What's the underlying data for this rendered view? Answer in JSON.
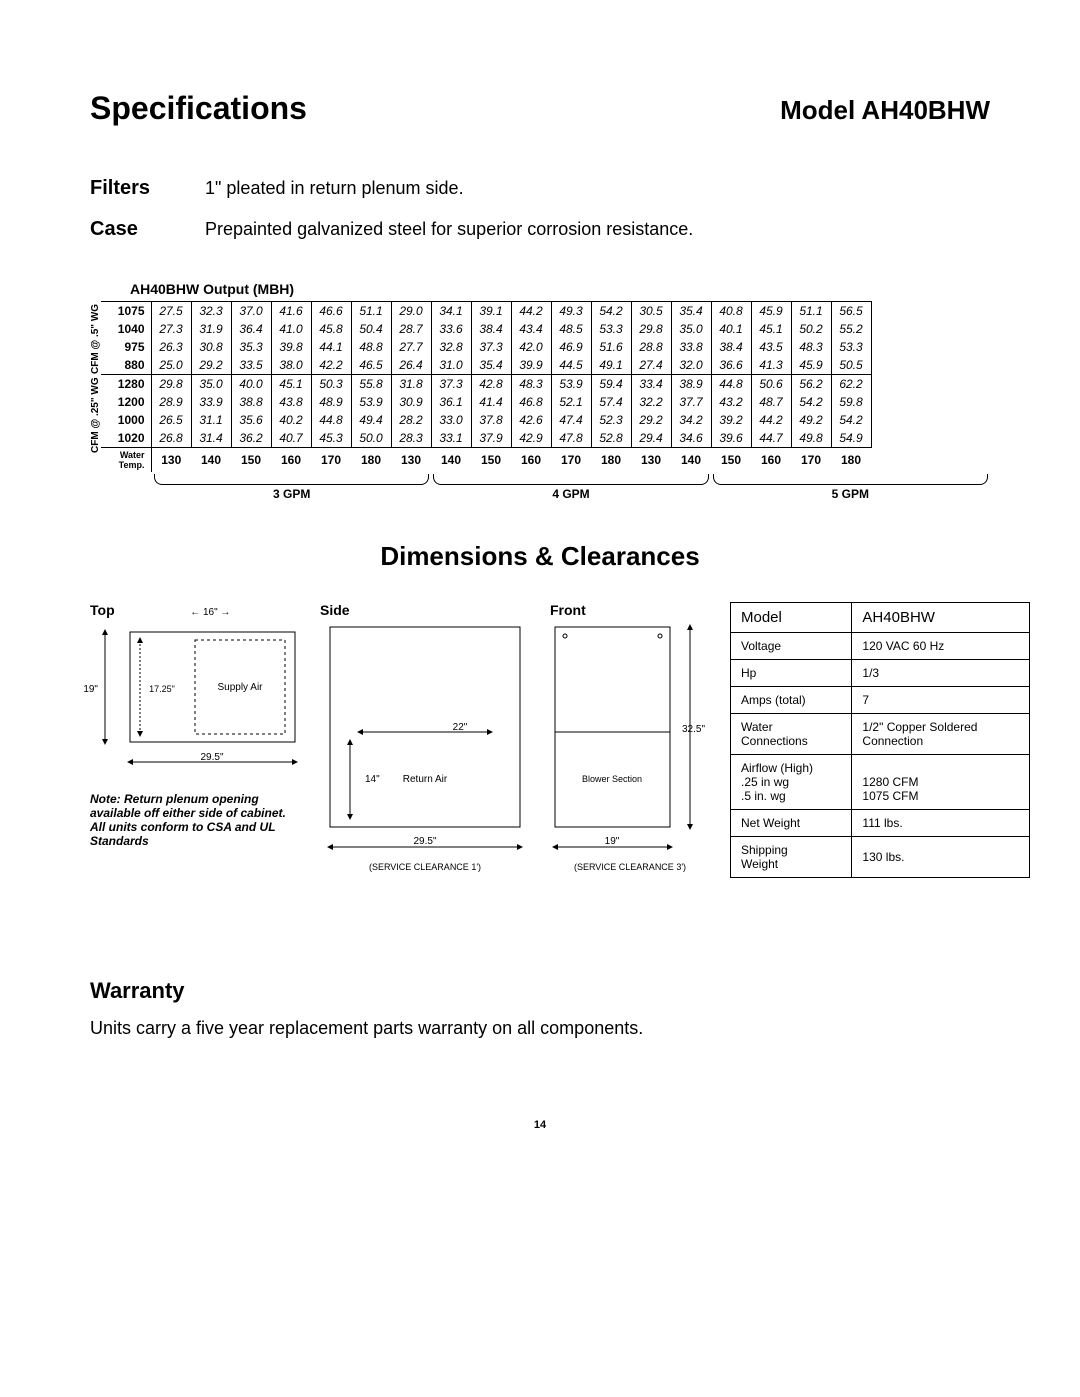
{
  "header": {
    "title": "Specifications",
    "model": "Model  AH40BHW"
  },
  "specs": {
    "filters_label": "Filters",
    "filters_text": "1\" pleated in return plenum side.",
    "case_label": "Case",
    "case_text": "Prepainted galvanized steel for superior corrosion resistance."
  },
  "output_table": {
    "title": "AH40BHW Output (MBH)",
    "vlabel1": "CFM @ .5\" WG",
    "vlabel2": "CFM @ .25\" WG",
    "rows": [
      {
        "head": "1075",
        "cells": [
          "27.5",
          "32.3",
          "37.0",
          "41.6",
          "46.6",
          "51.1",
          "29.0",
          "34.1",
          "39.1",
          "44.2",
          "49.3",
          "54.2",
          "30.5",
          "35.4",
          "40.8",
          "45.9",
          "51.1",
          "56.5"
        ]
      },
      {
        "head": "1040",
        "cells": [
          "27.3",
          "31.9",
          "36.4",
          "41.0",
          "45.8",
          "50.4",
          "28.7",
          "33.6",
          "38.4",
          "43.4",
          "48.5",
          "53.3",
          "29.8",
          "35.0",
          "40.1",
          "45.1",
          "50.2",
          "55.2"
        ]
      },
      {
        "head": "975",
        "cells": [
          "26.3",
          "30.8",
          "35.3",
          "39.8",
          "44.1",
          "48.8",
          "27.7",
          "32.8",
          "37.3",
          "42.0",
          "46.9",
          "51.6",
          "28.8",
          "33.8",
          "38.4",
          "43.5",
          "48.3",
          "53.3"
        ]
      },
      {
        "head": "880",
        "cells": [
          "25.0",
          "29.2",
          "33.5",
          "38.0",
          "42.2",
          "46.5",
          "26.4",
          "31.0",
          "35.4",
          "39.9",
          "44.5",
          "49.1",
          "27.4",
          "32.0",
          "36.6",
          "41.3",
          "45.9",
          "50.5"
        ]
      },
      {
        "head": "1280",
        "cells": [
          "29.8",
          "35.0",
          "40.0",
          "45.1",
          "50.3",
          "55.8",
          "31.8",
          "37.3",
          "42.8",
          "48.3",
          "53.9",
          "59.4",
          "33.4",
          "38.9",
          "44.8",
          "50.6",
          "56.2",
          "62.2"
        ]
      },
      {
        "head": "1200",
        "cells": [
          "28.9",
          "33.9",
          "38.8",
          "43.8",
          "48.9",
          "53.9",
          "30.9",
          "36.1",
          "41.4",
          "46.8",
          "52.1",
          "57.4",
          "32.2",
          "37.7",
          "43.2",
          "48.7",
          "54.2",
          "59.8"
        ]
      },
      {
        "head": "1000",
        "cells": [
          "26.5",
          "31.1",
          "35.6",
          "40.2",
          "44.8",
          "49.4",
          "28.2",
          "33.0",
          "37.8",
          "42.6",
          "47.4",
          "52.3",
          "29.2",
          "34.2",
          "39.2",
          "44.2",
          "49.2",
          "54.2"
        ]
      },
      {
        "head": "1020",
        "cells": [
          "26.8",
          "31.4",
          "36.2",
          "40.7",
          "45.3",
          "50.0",
          "28.3",
          "33.1",
          "37.9",
          "42.9",
          "47.8",
          "52.8",
          "29.4",
          "34.6",
          "39.6",
          "44.7",
          "49.8",
          "54.9"
        ]
      }
    ],
    "water_temp_label": "Water\nTemp.",
    "temps": [
      "130",
      "140",
      "150",
      "160",
      "170",
      "180",
      "130",
      "140",
      "150",
      "160",
      "170",
      "180",
      "130",
      "140",
      "150",
      "160",
      "170",
      "180"
    ],
    "gpm": [
      "3 GPM",
      "4 GPM",
      "5 GPM"
    ]
  },
  "dimensions": {
    "section_title": "Dimensions & Clearances",
    "top_label": "Top",
    "side_label": "Side",
    "front_label": "Front",
    "top": {
      "w": "29.5\"",
      "inner_w": "16\"",
      "h": "19\"",
      "inner_h": "17.25\"",
      "text": "Supply Air"
    },
    "side": {
      "w": "29.5\"",
      "inner_w": "22\"",
      "inner_h": "14\"",
      "text": "Return Air",
      "svc": "(SERVICE CLEARANCE 1')"
    },
    "front": {
      "w": "19\"",
      "h": "32.5\"",
      "text": "Blower Section",
      "svc": "(SERVICE CLEARANCE 3')"
    },
    "note_label": "Note:",
    "note_text": "Return plenum opening available off either side of cabinet. All units conform to CSA and UL Standards"
  },
  "elec": {
    "header": [
      "Model",
      "AH40BHW"
    ],
    "rows": [
      [
        "Voltage",
        "120 VAC 60 Hz"
      ],
      [
        "Hp",
        "1/3"
      ],
      [
        "Amps (total)",
        "7"
      ],
      [
        "Water\nConnections",
        "1/2\" Copper Soldered\nConnection"
      ],
      [
        "Airflow (High)\n.25 in wg\n.5 in. wg",
        "\n1280 CFM\n1075 CFM"
      ],
      [
        "Net Weight",
        "111 lbs."
      ],
      [
        "Shipping\nWeight",
        "130 lbs."
      ]
    ]
  },
  "warranty": {
    "heading": "Warranty",
    "text": "Units carry a five year replacement parts warranty on all components."
  },
  "page_number": "14"
}
